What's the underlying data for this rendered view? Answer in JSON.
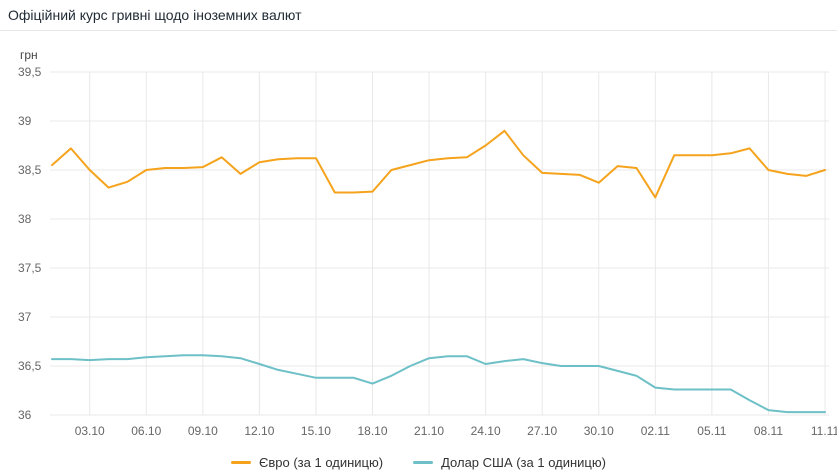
{
  "header": {
    "title": "Офіційний курс гривні щодо іноземних валют"
  },
  "chart_data": {
    "type": "line",
    "title": "Офіційний курс гривні щодо іноземних валют",
    "unit_label": "грн",
    "ylabel": "грн",
    "xlabel": "",
    "ylim": [
      36,
      39.5
    ],
    "grid": true,
    "legend_position": "bottom",
    "yticks": [
      {
        "value": 39.5,
        "label": "39,5"
      },
      {
        "value": 39,
        "label": "39"
      },
      {
        "value": 38.5,
        "label": "38,5"
      },
      {
        "value": 38,
        "label": "38"
      },
      {
        "value": 37.5,
        "label": "37,5"
      },
      {
        "value": 37,
        "label": "37"
      },
      {
        "value": 36.5,
        "label": "36,5"
      },
      {
        "value": 36,
        "label": "36"
      }
    ],
    "x_count": 42,
    "xticks": [
      {
        "index": 2,
        "label": "03.10"
      },
      {
        "index": 5,
        "label": "06.10"
      },
      {
        "index": 8,
        "label": "09.10"
      },
      {
        "index": 11,
        "label": "12.10"
      },
      {
        "index": 14,
        "label": "15.10"
      },
      {
        "index": 17,
        "label": "18.10"
      },
      {
        "index": 20,
        "label": "21.10"
      },
      {
        "index": 23,
        "label": "24.10"
      },
      {
        "index": 26,
        "label": "27.10"
      },
      {
        "index": 29,
        "label": "30.10"
      },
      {
        "index": 32,
        "label": "02.11"
      },
      {
        "index": 35,
        "label": "05.11"
      },
      {
        "index": 38,
        "label": "08.11"
      },
      {
        "index": 41,
        "label": "11.11"
      }
    ],
    "series": [
      {
        "name": "Євро (за 1 одиницю)",
        "color": "#f5a31c",
        "values": [
          38.55,
          38.72,
          38.5,
          38.32,
          38.38,
          38.5,
          38.52,
          38.52,
          38.53,
          38.63,
          38.46,
          38.58,
          38.61,
          38.62,
          38.62,
          38.27,
          38.27,
          38.28,
          38.5,
          38.55,
          38.6,
          38.62,
          38.63,
          38.75,
          38.9,
          38.65,
          38.47,
          38.46,
          38.45,
          38.37,
          38.54,
          38.52,
          38.22,
          38.65,
          38.65,
          38.65,
          38.67,
          38.72,
          38.5,
          38.46,
          38.44,
          38.5
        ]
      },
      {
        "name": "Долар США (за 1 одиницю)",
        "color": "#6dc0c7",
        "values": [
          36.57,
          36.57,
          36.56,
          36.57,
          36.57,
          36.59,
          36.6,
          36.61,
          36.61,
          36.6,
          36.58,
          36.52,
          36.46,
          36.42,
          36.38,
          36.38,
          36.38,
          36.32,
          36.4,
          36.5,
          36.58,
          36.6,
          36.6,
          36.52,
          36.55,
          36.57,
          36.53,
          36.5,
          36.5,
          36.5,
          36.45,
          36.4,
          36.28,
          36.26,
          36.26,
          36.26,
          36.26,
          36.15,
          36.05,
          36.03,
          36.03,
          36.03
        ]
      }
    ]
  }
}
